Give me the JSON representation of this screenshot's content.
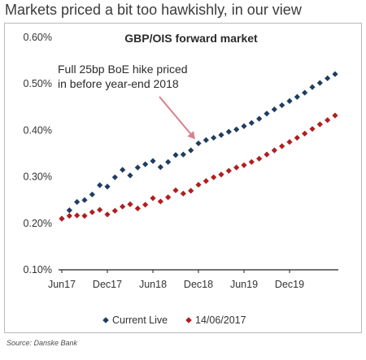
{
  "page": {
    "title": "Markets priced a bit too hawkishly, in our view",
    "source": "Source: Danske Bank"
  },
  "chart_data": {
    "type": "scatter",
    "title": "GBP/OIS forward market",
    "xlabel": "",
    "ylabel": "",
    "x_ticks": [
      "Jun17",
      "Dec17",
      "Jun18",
      "Dec18",
      "Jun19",
      "Dec19"
    ],
    "y_ticks": [
      "0.60%",
      "0.50%",
      "0.40%",
      "0.30%",
      "0.20%",
      "0.10%"
    ],
    "ylim": [
      0.1,
      0.6
    ],
    "grid": false,
    "legend_position": "bottom",
    "x_unit": "months after Jun 2017",
    "annotation": {
      "line1": "Full 25bp BoE hike priced",
      "line2": "in before year-end 2018",
      "target": {
        "x": 18,
        "y": 0.372
      }
    },
    "series": [
      {
        "name": "Current Live",
        "color": "#1f3d5f",
        "marker": "diamond",
        "points": [
          {
            "x": 0,
            "y": 0.21
          },
          {
            "x": 1,
            "y": 0.228
          },
          {
            "x": 2,
            "y": 0.246
          },
          {
            "x": 3,
            "y": 0.25
          },
          {
            "x": 4,
            "y": 0.262
          },
          {
            "x": 5,
            "y": 0.282
          },
          {
            "x": 6,
            "y": 0.279
          },
          {
            "x": 7,
            "y": 0.299
          },
          {
            "x": 8,
            "y": 0.315
          },
          {
            "x": 9,
            "y": 0.303
          },
          {
            "x": 10,
            "y": 0.32
          },
          {
            "x": 11,
            "y": 0.327
          },
          {
            "x": 12,
            "y": 0.334
          },
          {
            "x": 13,
            "y": 0.321
          },
          {
            "x": 14,
            "y": 0.332
          },
          {
            "x": 15,
            "y": 0.347
          },
          {
            "x": 16,
            "y": 0.348
          },
          {
            "x": 17,
            "y": 0.357
          },
          {
            "x": 18,
            "y": 0.372
          },
          {
            "x": 19,
            "y": 0.379
          },
          {
            "x": 20,
            "y": 0.384
          },
          {
            "x": 21,
            "y": 0.39
          },
          {
            "x": 22,
            "y": 0.397
          },
          {
            "x": 23,
            "y": 0.402
          },
          {
            "x": 24,
            "y": 0.409
          },
          {
            "x": 25,
            "y": 0.416
          },
          {
            "x": 26,
            "y": 0.425
          },
          {
            "x": 27,
            "y": 0.436
          },
          {
            "x": 28,
            "y": 0.445
          },
          {
            "x": 29,
            "y": 0.454
          },
          {
            "x": 30,
            "y": 0.463
          },
          {
            "x": 31,
            "y": 0.472
          },
          {
            "x": 32,
            "y": 0.481
          },
          {
            "x": 33,
            "y": 0.493
          },
          {
            "x": 34,
            "y": 0.502
          },
          {
            "x": 35,
            "y": 0.512
          },
          {
            "x": 36,
            "y": 0.521
          }
        ]
      },
      {
        "name": "14/06/2017",
        "color": "#b01e1e",
        "marker": "diamond",
        "points": [
          {
            "x": 0,
            "y": 0.21
          },
          {
            "x": 1,
            "y": 0.216
          },
          {
            "x": 2,
            "y": 0.217
          },
          {
            "x": 3,
            "y": 0.216
          },
          {
            "x": 4,
            "y": 0.224
          },
          {
            "x": 5,
            "y": 0.229
          },
          {
            "x": 6,
            "y": 0.219
          },
          {
            "x": 7,
            "y": 0.227
          },
          {
            "x": 8,
            "y": 0.236
          },
          {
            "x": 9,
            "y": 0.241
          },
          {
            "x": 10,
            "y": 0.232
          },
          {
            "x": 11,
            "y": 0.24
          },
          {
            "x": 12,
            "y": 0.254
          },
          {
            "x": 13,
            "y": 0.247
          },
          {
            "x": 14,
            "y": 0.256
          },
          {
            "x": 15,
            "y": 0.271
          },
          {
            "x": 16,
            "y": 0.264
          },
          {
            "x": 17,
            "y": 0.27
          },
          {
            "x": 18,
            "y": 0.283
          },
          {
            "x": 19,
            "y": 0.291
          },
          {
            "x": 20,
            "y": 0.299
          },
          {
            "x": 21,
            "y": 0.305
          },
          {
            "x": 22,
            "y": 0.313
          },
          {
            "x": 23,
            "y": 0.32
          },
          {
            "x": 24,
            "y": 0.325
          },
          {
            "x": 25,
            "y": 0.332
          },
          {
            "x": 26,
            "y": 0.339
          },
          {
            "x": 27,
            "y": 0.348
          },
          {
            "x": 28,
            "y": 0.357
          },
          {
            "x": 29,
            "y": 0.366
          },
          {
            "x": 30,
            "y": 0.375
          },
          {
            "x": 31,
            "y": 0.384
          },
          {
            "x": 32,
            "y": 0.393
          },
          {
            "x": 33,
            "y": 0.403
          },
          {
            "x": 34,
            "y": 0.413
          },
          {
            "x": 35,
            "y": 0.422
          },
          {
            "x": 36,
            "y": 0.432
          }
        ]
      }
    ],
    "colors": {
      "axis": "#222222",
      "arrow": "#d9808e",
      "frame": "#b8b8b8"
    }
  }
}
